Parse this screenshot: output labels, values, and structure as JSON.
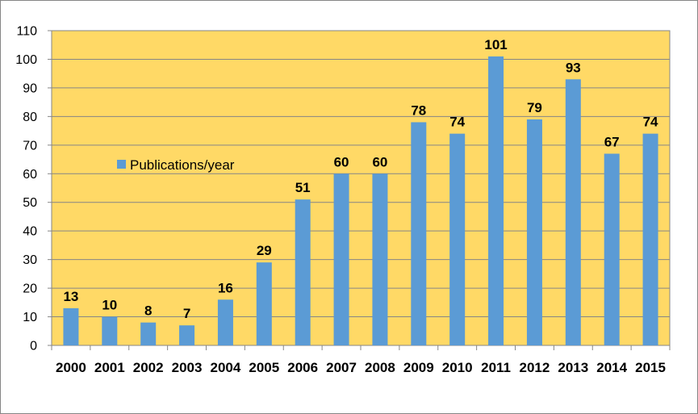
{
  "chart_data": {
    "type": "bar",
    "categories": [
      "2000",
      "2001",
      "2002",
      "2003",
      "2004",
      "2005",
      "2006",
      "2007",
      "2008",
      "2009",
      "2010",
      "2011",
      "2012",
      "2013",
      "2014",
      "2015"
    ],
    "series": [
      {
        "name": "Publications/year",
        "values": [
          13,
          10,
          8,
          7,
          16,
          29,
          51,
          60,
          60,
          78,
          74,
          101,
          79,
          93,
          67,
          74
        ],
        "color": "#5b9bd5"
      }
    ],
    "ylim": [
      0,
      110
    ],
    "yticks": [
      0,
      10,
      20,
      30,
      40,
      50,
      60,
      70,
      80,
      90,
      100,
      110
    ],
    "grid": true,
    "legend_position": "left, inside plot",
    "plot_background": "#ffd966",
    "gridline_color": "#868686",
    "data_labels": true
  }
}
